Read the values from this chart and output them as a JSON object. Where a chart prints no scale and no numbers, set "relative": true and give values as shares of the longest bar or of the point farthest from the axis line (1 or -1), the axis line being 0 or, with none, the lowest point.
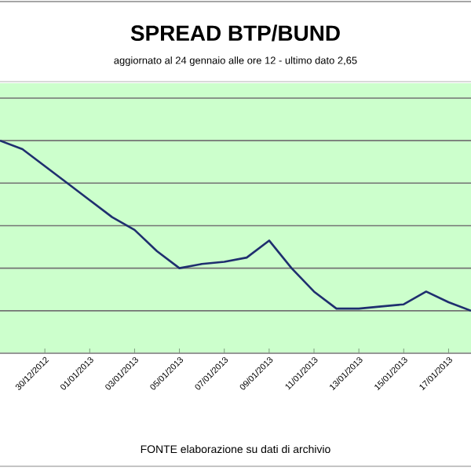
{
  "chart_data": {
    "type": "line",
    "title": "SPREAD  BTP/BUND",
    "subtitle": "aggiornato al 24 gennaio alle ore 12 - ultimo dato 2,65",
    "categories": [
      null,
      null,
      "30/12/2012",
      null,
      "01/01/2013",
      null,
      "03/01/2013",
      null,
      "05/01/2013",
      null,
      "07/01/2013",
      null,
      "09/01/2013",
      null,
      "11/01/2013",
      null,
      "13/01/2013",
      null,
      "15/01/2013",
      null,
      "17/01/2013",
      null
    ],
    "series": [
      {
        "color": "#1f2f6f",
        "values": [
          1,
          0.96,
          0.88,
          0.8,
          0.72,
          0.64,
          0.58,
          0.48,
          0.4,
          0.42,
          0.43,
          0.45,
          0.53,
          0.4,
          0.29,
          0.21,
          0.21,
          0.22,
          0.23,
          0.29,
          0.24,
          0.2
        ]
      }
    ],
    "relative": true,
    "grid": "y",
    "marker": "none",
    "line_style": "solid",
    "annotations": [
      "FONTE elaborazione su dati di archivio"
    ]
  }
}
